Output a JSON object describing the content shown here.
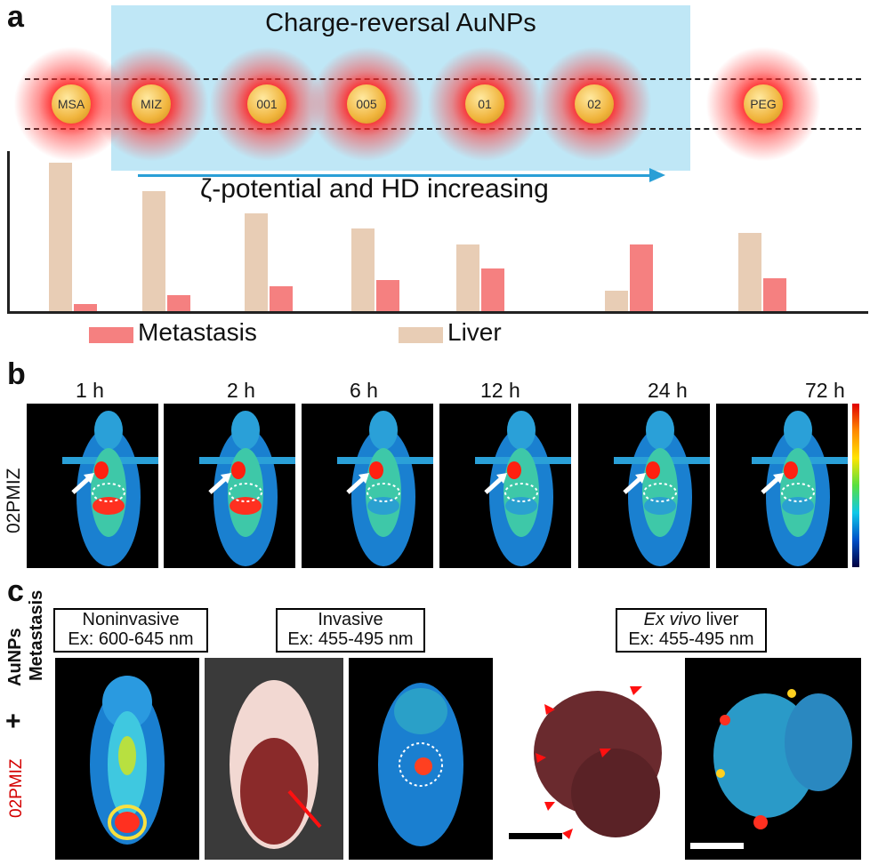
{
  "panel_a": {
    "letter": "a",
    "banner_title": "Charge-reversal AuNPs",
    "nanoparticles": [
      "MSA",
      "MIZ",
      "001",
      "005",
      "01",
      "02",
      "PEG"
    ],
    "arrow_caption": "ζ-potential and HD increasing",
    "chart_data": {
      "type": "bar",
      "categories": [
        "MSA",
        "MIZ",
        "001",
        "005",
        "01",
        "02",
        "PEG"
      ],
      "series": [
        {
          "name": "Liver",
          "values": [
            100,
            81,
            66,
            56,
            45,
            14,
            53
          ]
        },
        {
          "name": "Metastasis",
          "values": [
            5,
            11,
            17,
            21,
            29,
            45,
            22
          ]
        }
      ],
      "ylim": [
        0,
        105
      ],
      "legend_position": "bottom",
      "colors": {
        "Liver": "#e8cdb5",
        "Metastasis": "#f58080"
      }
    },
    "legend": {
      "metastasis": "Metastasis",
      "liver": "Liver"
    }
  },
  "panel_b": {
    "letter": "b",
    "row_label": "02PMIZ",
    "times": [
      "1 h",
      "2 h",
      "6 h",
      "12 h",
      "24 h",
      "72 h"
    ]
  },
  "panel_c": {
    "letter": "c",
    "side_label_top": "AuNPs",
    "side_label_top2": "Metastasis",
    "side_label_plus": "+",
    "side_label_red": "02PMIZ",
    "box1": {
      "line1": "Noninvasive",
      "line2": "Ex: 600-645 nm"
    },
    "box2": {
      "line1": "Invasive",
      "line2": "Ex: 455-495 nm"
    },
    "box3": {
      "line1_italic": "Ex vivo",
      "line1_rest": " liver",
      "line2": "Ex: 455-495 nm"
    }
  }
}
